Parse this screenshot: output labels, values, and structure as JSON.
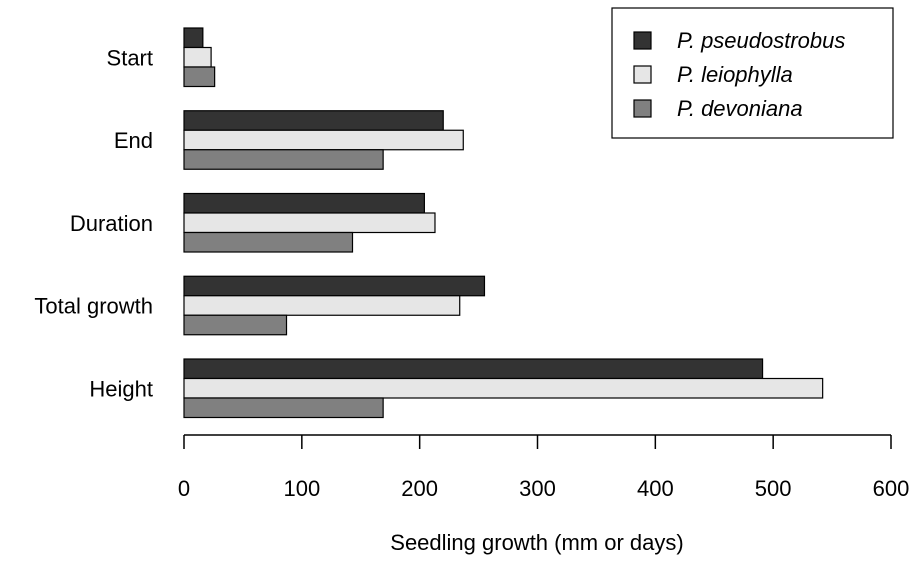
{
  "chart_data": {
    "type": "bar",
    "orientation": "horizontal",
    "categories": [
      "Start",
      "End",
      "Duration",
      "Total growth",
      "Height"
    ],
    "series": [
      {
        "name": "P. pseudostrobus",
        "color": "#333333",
        "values": [
          16,
          220,
          204,
          255,
          491
        ]
      },
      {
        "name": "P. leiophylla",
        "color": "#e6e6e6",
        "values": [
          23,
          237,
          213,
          234,
          542
        ]
      },
      {
        "name": "P. devoniana",
        "color": "#808080",
        "values": [
          26,
          169,
          143,
          87,
          169
        ]
      }
    ],
    "xlabel": "Seedling growth (mm or days)",
    "ylabel": "",
    "xlim": [
      0,
      600
    ],
    "xticks": [
      "0",
      "100",
      "200",
      "300",
      "400",
      "500",
      "600"
    ],
    "grid": false,
    "legend_position": "top-right"
  }
}
